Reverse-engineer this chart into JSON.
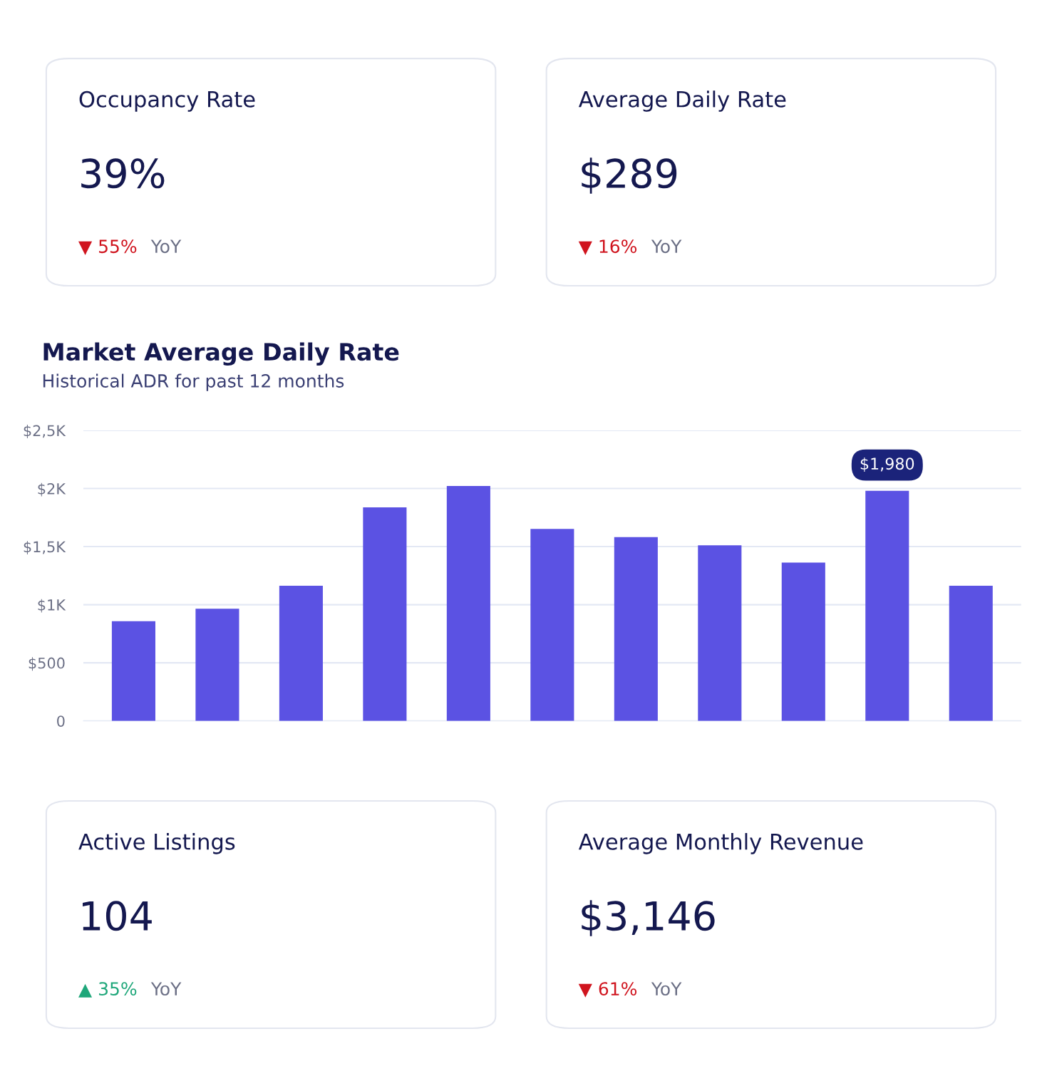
{
  "chart_data": [
    {
      "type": "other",
      "title": "Occupancy Rate",
      "annotations": [
        "39%",
        "▼ 55%",
        "YoY"
      ],
      "colors": [
        "#14184f",
        "#d0141e",
        "#6b6f85"
      ]
    },
    {
      "type": "other",
      "title": "Average Daily Rate",
      "annotations": [
        "$289",
        "▼ 16%",
        "YoY"
      ],
      "colors": [
        "#14184f",
        "#d0141e",
        "#6b6f85"
      ]
    },
    {
      "type": "bar",
      "title": "Market Average Daily Rate",
      "subtitle": "Historical ADR for past 12 months",
      "categories": [
        null,
        null,
        null,
        null,
        null,
        null,
        null,
        null,
        null,
        null,
        null
      ],
      "values": [
        858,
        965,
        1163,
        1837,
        2021,
        1652,
        1582,
        1511,
        1362,
        1980,
        1163
      ],
      "value_labels": [
        null,
        null,
        null,
        null,
        null,
        null,
        null,
        null,
        null,
        "$1,980",
        null
      ],
      "color": "#5b52e3",
      "ylim": [
        0,
        2500
      ],
      "yticks": [
        {
          "value": 0,
          "label": "0"
        },
        {
          "value": 500,
          "label": "$500"
        },
        {
          "value": 1000,
          "label": "$1K"
        },
        {
          "value": 1500,
          "label": "$1,5K"
        },
        {
          "value": 2000,
          "label": "$2K"
        },
        {
          "value": 2500,
          "label": "$2,5K"
        }
      ],
      "grid": "y"
    },
    {
      "type": "other",
      "title": "Active Listings",
      "annotations": [
        "104",
        "▲ 35%",
        "YoY"
      ],
      "colors": [
        "#14184f",
        "#1fa77a",
        "#6b6f85"
      ]
    },
    {
      "type": "other",
      "title": "Average Monthly Revenue",
      "annotations": [
        "$3,146",
        "▼ 61%",
        "YoY"
      ],
      "colors": [
        "#14184f",
        "#d0141e",
        "#6b6f85"
      ]
    }
  ]
}
